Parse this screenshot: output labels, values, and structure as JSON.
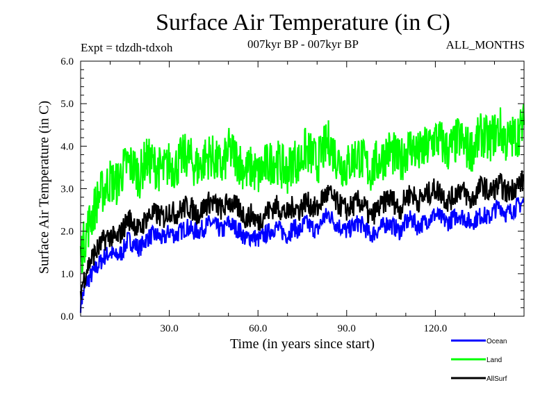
{
  "chart_data": {
    "type": "line",
    "title": "Surface Air Temperature (in C)",
    "subtitle": "007kyr BP - 007kyr BP",
    "annotations": {
      "experiment": "Expt = tdzdh-tdxoh",
      "season": "ALL_MONTHS"
    },
    "xlabel": "Time (in years since start)",
    "ylabel": "Surface Air Temperature (in C)",
    "xlim": [
      0,
      150
    ],
    "ylim": [
      0,
      6
    ],
    "xticks": [
      30,
      60,
      90,
      120
    ],
    "xtick_labels": [
      "30.0",
      "60.0",
      "90.0",
      "120.0"
    ],
    "yticks": [
      0,
      1,
      2,
      3,
      4,
      5,
      6
    ],
    "ytick_labels": [
      "0.0",
      "1.0",
      "2.0",
      "3.0",
      "4.0",
      "5.0",
      "6.0"
    ],
    "grid": false,
    "legend_position": "bottom-right",
    "x": [
      0,
      2,
      4,
      6,
      8,
      10,
      12,
      14,
      16,
      18,
      20,
      22,
      24,
      26,
      28,
      30,
      32,
      34,
      36,
      38,
      40,
      42,
      44,
      46,
      48,
      50,
      52,
      54,
      56,
      58,
      60,
      62,
      64,
      66,
      68,
      70,
      72,
      74,
      76,
      78,
      80,
      82,
      84,
      86,
      88,
      90,
      92,
      94,
      96,
      98,
      100,
      102,
      104,
      106,
      108,
      110,
      112,
      114,
      116,
      118,
      120,
      122,
      124,
      126,
      128,
      130,
      132,
      134,
      136,
      138,
      140,
      142,
      144,
      146,
      148,
      150
    ],
    "series": [
      {
        "name": "Ocean",
        "color": "#0000ff",
        "values": [
          0.3,
          0.8,
          1.0,
          1.2,
          1.4,
          1.5,
          1.4,
          1.5,
          1.8,
          1.7,
          1.6,
          1.8,
          1.9,
          1.9,
          1.8,
          2.0,
          1.9,
          2.0,
          2.1,
          2.0,
          2.0,
          2.1,
          2.2,
          2.1,
          2.0,
          2.2,
          2.1,
          2.0,
          1.8,
          1.9,
          1.8,
          1.9,
          2.0,
          2.1,
          2.0,
          1.9,
          2.1,
          2.0,
          2.2,
          2.1,
          2.0,
          2.3,
          2.4,
          2.2,
          2.1,
          2.0,
          2.1,
          2.2,
          2.1,
          1.9,
          2.0,
          2.1,
          2.2,
          2.1,
          2.0,
          2.2,
          2.3,
          2.1,
          2.2,
          2.3,
          2.4,
          2.3,
          2.2,
          2.3,
          2.4,
          2.3,
          2.2,
          2.3,
          2.4,
          2.3,
          2.5,
          2.6,
          2.4,
          2.5,
          2.6,
          2.7
        ]
      },
      {
        "name": "Land",
        "color": "#00ff00",
        "values": [
          1.4,
          2.0,
          2.4,
          2.8,
          3.0,
          3.2,
          3.1,
          3.4,
          3.6,
          3.5,
          3.3,
          3.7,
          3.6,
          3.5,
          3.4,
          3.6,
          3.5,
          3.7,
          3.8,
          3.6,
          3.5,
          3.7,
          3.8,
          3.6,
          3.5,
          3.9,
          3.8,
          3.6,
          3.4,
          3.5,
          3.3,
          3.5,
          3.6,
          3.7,
          3.5,
          3.4,
          3.7,
          3.6,
          3.9,
          3.8,
          3.6,
          3.9,
          4.1,
          3.8,
          3.6,
          3.5,
          3.7,
          3.8,
          3.6,
          3.4,
          3.6,
          3.7,
          3.9,
          3.8,
          3.6,
          3.9,
          4.0,
          3.8,
          3.9,
          4.0,
          4.2,
          4.1,
          3.9,
          4.0,
          4.2,
          4.0,
          3.9,
          4.1,
          4.3,
          4.1,
          4.3,
          4.4,
          4.1,
          4.2,
          4.3,
          4.5
        ]
      },
      {
        "name": "AllSurf",
        "color": "#000000",
        "values": [
          0.6,
          1.1,
          1.4,
          1.6,
          1.8,
          1.9,
          1.8,
          2.0,
          2.3,
          2.2,
          2.0,
          2.3,
          2.4,
          2.4,
          2.3,
          2.5,
          2.4,
          2.5,
          2.6,
          2.5,
          2.4,
          2.6,
          2.7,
          2.6,
          2.5,
          2.7,
          2.6,
          2.5,
          2.3,
          2.4,
          2.2,
          2.4,
          2.5,
          2.6,
          2.5,
          2.4,
          2.6,
          2.5,
          2.7,
          2.6,
          2.5,
          2.8,
          2.9,
          2.7,
          2.6,
          2.5,
          2.6,
          2.7,
          2.6,
          2.3,
          2.5,
          2.6,
          2.8,
          2.7,
          2.5,
          2.8,
          2.9,
          2.7,
          2.8,
          2.9,
          3.0,
          2.9,
          2.7,
          2.8,
          3.0,
          2.9,
          2.7,
          2.9,
          3.1,
          2.9,
          3.0,
          3.1,
          2.9,
          3.0,
          3.1,
          3.2
        ]
      }
    ]
  }
}
